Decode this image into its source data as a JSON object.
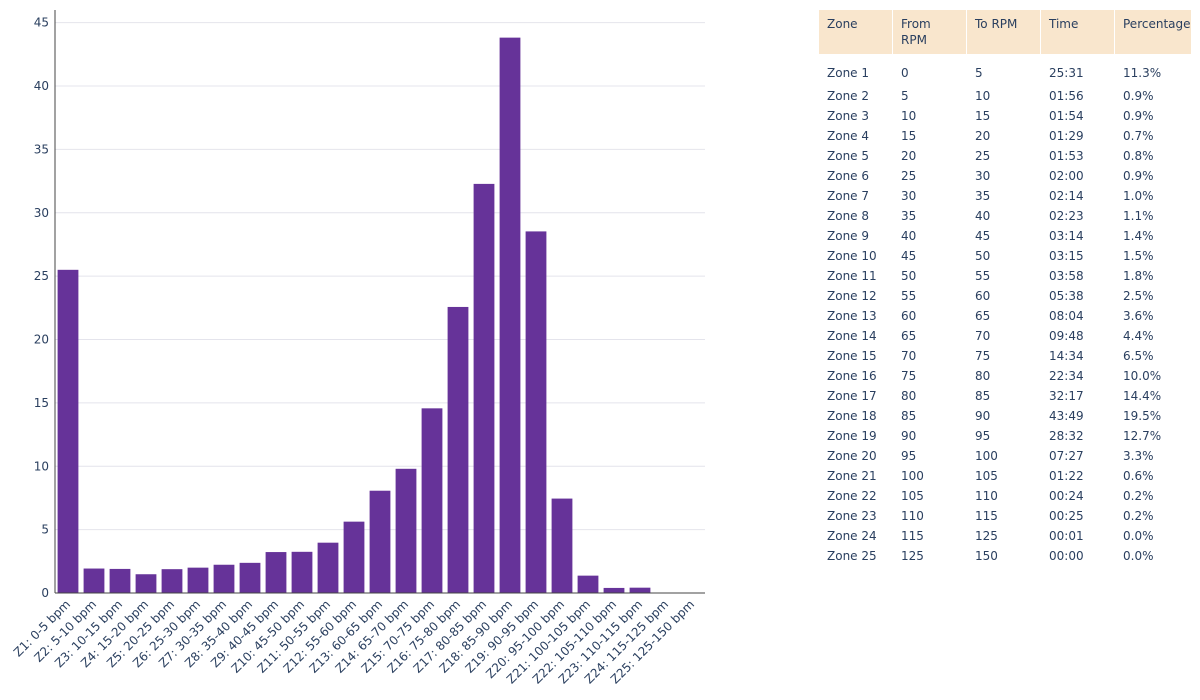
{
  "colors": {
    "bar": "#663399",
    "grid": "#e4e4ec",
    "axis_line": "#444444",
    "table_header_bg": "#f9e6cd",
    "text": "#2a3f5f"
  },
  "chart_data": {
    "type": "bar",
    "title": "",
    "xlabel": "",
    "ylabel": "",
    "ylim": [
      0,
      46
    ],
    "yticks": [
      0,
      5,
      10,
      15,
      20,
      25,
      30,
      35,
      40,
      45
    ],
    "grid": true,
    "categories": [
      "Z1: 0-5 bpm",
      "Z2: 5-10 bpm",
      "Z3: 10-15 bpm",
      "Z4: 15-20 bpm",
      "Z5: 20-25 bpm",
      "Z6: 25-30 bpm",
      "Z7: 30-35 bpm",
      "Z8: 35-40 bpm",
      "Z9: 40-45 bpm",
      "Z10: 45-50 bpm",
      "Z11: 50-55 bpm",
      "Z12: 55-60 bpm",
      "Z13: 60-65 bpm",
      "Z14: 65-70 bpm",
      "Z15: 70-75 bpm",
      "Z16: 75-80 bpm",
      "Z17: 80-85 bpm",
      "Z18: 85-90 bpm",
      "Z19: 90-95 bpm",
      "Z20: 95-100 bpm",
      "Z21: 100-105 bpm",
      "Z22: 105-110 bpm",
      "Z23: 110-115 bpm",
      "Z24: 115-125 bpm",
      "Z25: 125-150 bpm"
    ],
    "values": [
      25.5,
      1.93,
      1.9,
      1.48,
      1.88,
      2.0,
      2.23,
      2.38,
      3.23,
      3.25,
      3.97,
      5.63,
      8.07,
      9.8,
      14.57,
      22.57,
      32.28,
      43.82,
      28.53,
      7.45,
      1.37,
      0.4,
      0.42,
      0.02,
      0.0
    ]
  },
  "table": {
    "headers": [
      "Zone",
      "From RPM",
      "To RPM",
      "Time",
      "Percentage"
    ],
    "rows": [
      [
        "Zone 1",
        "0",
        "5",
        "25:31",
        "11.3%"
      ],
      [
        "Zone 2",
        "5",
        "10",
        "01:56",
        "0.9%"
      ],
      [
        "Zone 3",
        "10",
        "15",
        "01:54",
        "0.9%"
      ],
      [
        "Zone 4",
        "15",
        "20",
        "01:29",
        "0.7%"
      ],
      [
        "Zone 5",
        "20",
        "25",
        "01:53",
        "0.8%"
      ],
      [
        "Zone 6",
        "25",
        "30",
        "02:00",
        "0.9%"
      ],
      [
        "Zone 7",
        "30",
        "35",
        "02:14",
        "1.0%"
      ],
      [
        "Zone 8",
        "35",
        "40",
        "02:23",
        "1.1%"
      ],
      [
        "Zone 9",
        "40",
        "45",
        "03:14",
        "1.4%"
      ],
      [
        "Zone 10",
        "45",
        "50",
        "03:15",
        "1.5%"
      ],
      [
        "Zone 11",
        "50",
        "55",
        "03:58",
        "1.8%"
      ],
      [
        "Zone 12",
        "55",
        "60",
        "05:38",
        "2.5%"
      ],
      [
        "Zone 13",
        "60",
        "65",
        "08:04",
        "3.6%"
      ],
      [
        "Zone 14",
        "65",
        "70",
        "09:48",
        "4.4%"
      ],
      [
        "Zone 15",
        "70",
        "75",
        "14:34",
        "6.5%"
      ],
      [
        "Zone 16",
        "75",
        "80",
        "22:34",
        "10.0%"
      ],
      [
        "Zone 17",
        "80",
        "85",
        "32:17",
        "14.4%"
      ],
      [
        "Zone 18",
        "85",
        "90",
        "43:49",
        "19.5%"
      ],
      [
        "Zone 19",
        "90",
        "95",
        "28:32",
        "12.7%"
      ],
      [
        "Zone 20",
        "95",
        "100",
        "07:27",
        "3.3%"
      ],
      [
        "Zone 21",
        "100",
        "105",
        "01:22",
        "0.6%"
      ],
      [
        "Zone 22",
        "105",
        "110",
        "00:24",
        "0.2%"
      ],
      [
        "Zone 23",
        "110",
        "115",
        "00:25",
        "0.2%"
      ],
      [
        "Zone 24",
        "115",
        "125",
        "00:01",
        "0.0%"
      ],
      [
        "Zone 25",
        "125",
        "150",
        "00:00",
        "0.0%"
      ]
    ]
  }
}
